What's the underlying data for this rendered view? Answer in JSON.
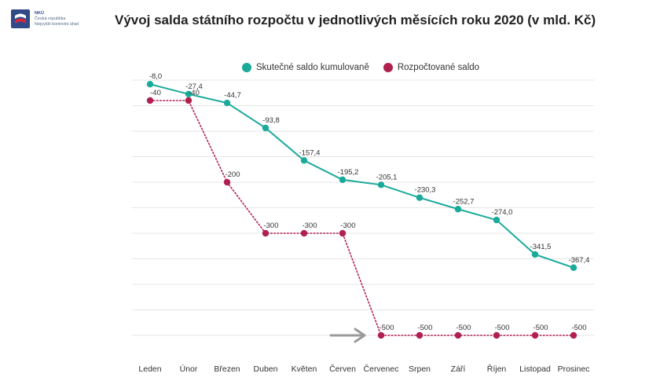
{
  "logo": {
    "letters": "NKÚ",
    "line1": "Česká republika",
    "line2": "Nejvyšší kontrolní úřad"
  },
  "colors": {
    "actual": "#1aaa9a",
    "budget": "#b0204f",
    "grid": "#e6e6e6",
    "arrow": "#9a9a9a"
  },
  "chart_data": {
    "type": "line",
    "title": "Vývoj salda státního rozpočtu v jednotlivých měsících roku 2020 (v mld. Kč)",
    "categories": [
      "Leden",
      "Únor",
      "Březen",
      "Duben",
      "Květen",
      "Červen",
      "Červenec",
      "Srpen",
      "Září",
      "Říjen",
      "Listopad",
      "Prosinec"
    ],
    "series": [
      {
        "name": "Skutečné saldo kumulovaně",
        "style": "solid",
        "values": [
          -8.0,
          -27.4,
          -44.7,
          -93.8,
          -157.4,
          -195.2,
          -205.1,
          -230.3,
          -252.7,
          -274.0,
          -341.5,
          -367.4
        ],
        "labels": [
          "-8,0",
          "-27,4",
          "-44,7",
          "-93,8",
          "-157,4",
          "-195,2",
          "-205,1",
          "-230,3",
          "-252,7",
          "-274,0",
          "-341,5",
          "-367,4"
        ]
      },
      {
        "name": "Rozpočtované saldo",
        "style": "dotted",
        "values": [
          -40,
          -40,
          -200,
          -300,
          -300,
          -300,
          -500,
          -500,
          -500,
          -500,
          -500,
          -500
        ],
        "labels": [
          "-40",
          "-40",
          "-200",
          "-300",
          "-300",
          "-300",
          "-500",
          "-500",
          "-500",
          "-500",
          "-500",
          "-500"
        ]
      }
    ],
    "ylim": [
      -500,
      0
    ],
    "grid": true,
    "legend": "top-center",
    "annotation": "arrow pointing to Červenec budget point"
  }
}
